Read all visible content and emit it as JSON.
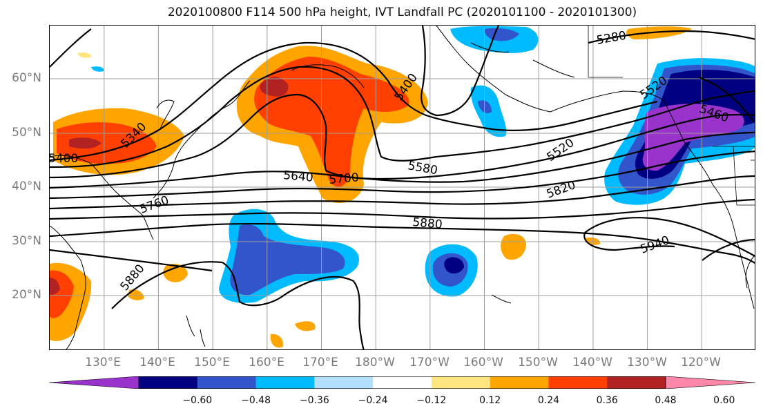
{
  "title": "2020100800 F114 500 hPa height, IVT Landfall PC (2020101100 - 2020101300)",
  "lat_labels": [
    "60°N",
    "50°N",
    "40°N",
    "30°N",
    "20°N"
  ],
  "lon_labels": [
    "130°E",
    "140°E",
    "150°E",
    "160°E",
    "170°E",
    "180°W",
    "170°W",
    "160°W",
    "150°W",
    "140°W",
    "130°W",
    "120°W"
  ],
  "colorbar": {
    "colors": [
      "#9933cc",
      "#000080",
      "#3355cc",
      "#00bbff",
      "#b3e0ff",
      "#ffffff",
      "#ffe680",
      "#ffa500",
      "#ff4000",
      "#b22222",
      "#ff88aa"
    ],
    "tick_labels": [
      "−0.60",
      "−0.48",
      "−0.36",
      "−0.24",
      "−0.12",
      "0.12",
      "0.24",
      "0.36",
      "0.48",
      "0.60"
    ]
  },
  "contour_labels": [
    "5280",
    "5340",
    "5400",
    "5460",
    "5520",
    "5580",
    "5640",
    "5700",
    "5760",
    "5820",
    "5880",
    "5940"
  ]
}
